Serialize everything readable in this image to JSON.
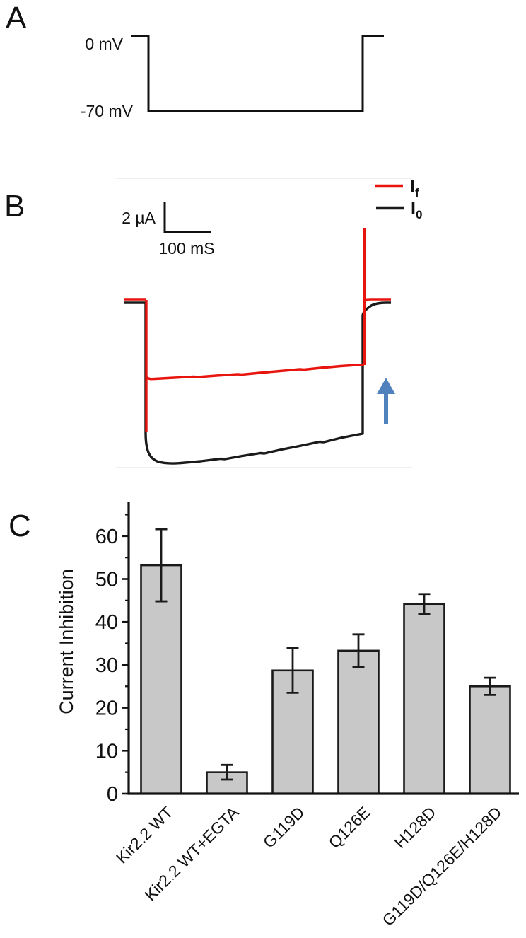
{
  "panels": {
    "a_label": "A",
    "b_label": "B",
    "c_label": "C"
  },
  "panel_a": {
    "hold_label": "0 mV",
    "step_label": "-70 mV",
    "hold_mv": 0,
    "step_mv": -70
  },
  "panel_b": {
    "scale_current": "2 µA",
    "scale_time": "100 mS",
    "legend": [
      {
        "base": "I",
        "sub": "f",
        "color": "#e8140e"
      },
      {
        "base": "I",
        "sub": "0",
        "color": "#1a1a1a"
      }
    ],
    "trace_red_color": "#e8140e",
    "trace_black_color": "#1a1a1a",
    "arrow_color": "#4f81bd"
  },
  "chart_data": {
    "type": "bar",
    "title": "",
    "xlabel": "",
    "ylabel": "Current Inhibition",
    "categories": [
      "Kir2.2 WT",
      "Kir2.2 WT+EGTA",
      "G119D",
      "Q126E",
      "H128D",
      "G119D/Q126E/H128D"
    ],
    "values": [
      53.2,
      5.0,
      28.7,
      33.3,
      44.2,
      25.0
    ],
    "errors": [
      8.4,
      1.7,
      5.2,
      3.8,
      2.3,
      2.0
    ],
    "yticks": [
      0,
      10,
      20,
      30,
      40,
      50,
      60
    ],
    "yticks_minor": [
      5,
      15,
      25,
      35,
      45,
      55,
      65
    ],
    "ylim": [
      0,
      68
    ],
    "grid": false,
    "legend_position": "none",
    "bar_fill": "#c8c8c8",
    "bar_stroke": "#1a1a1a",
    "error_color": "#1a1a1a"
  }
}
